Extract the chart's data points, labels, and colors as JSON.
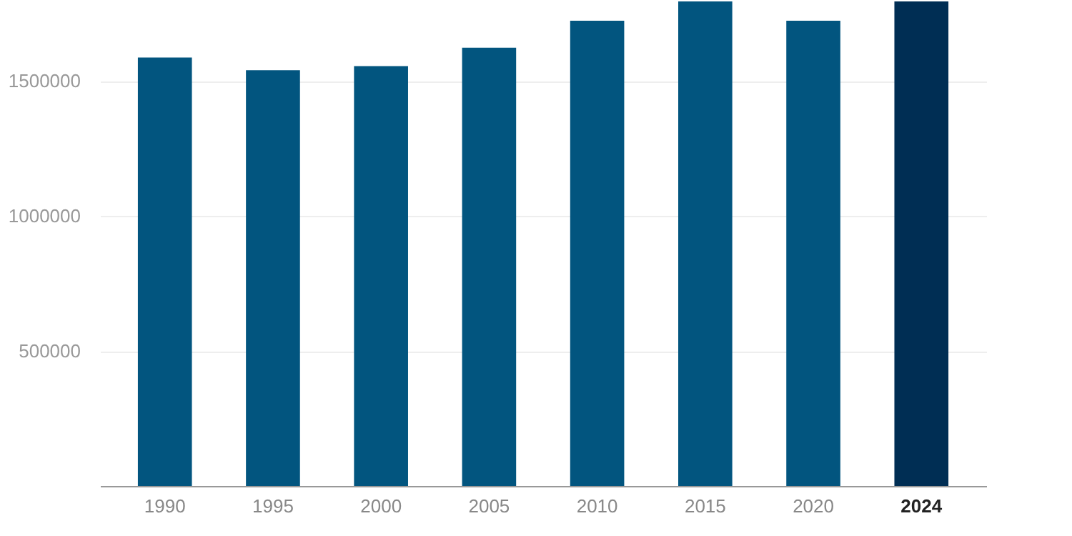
{
  "chart_data": {
    "type": "bar",
    "categories": [
      "1990",
      "1995",
      "2000",
      "2005",
      "2010",
      "2015",
      "2020",
      "2024"
    ],
    "values": [
      1587000,
      1540000,
      1555000,
      1623000,
      1723000,
      1795000,
      1723000,
      1795000
    ],
    "colors": [
      "#02557f",
      "#02557f",
      "#02557f",
      "#02557f",
      "#02557f",
      "#02557f",
      "#02557f",
      "#002e54"
    ],
    "ylim": [
      0,
      1800000
    ],
    "yticks": [
      500000,
      1000000,
      1500000
    ],
    "grid": "y"
  }
}
